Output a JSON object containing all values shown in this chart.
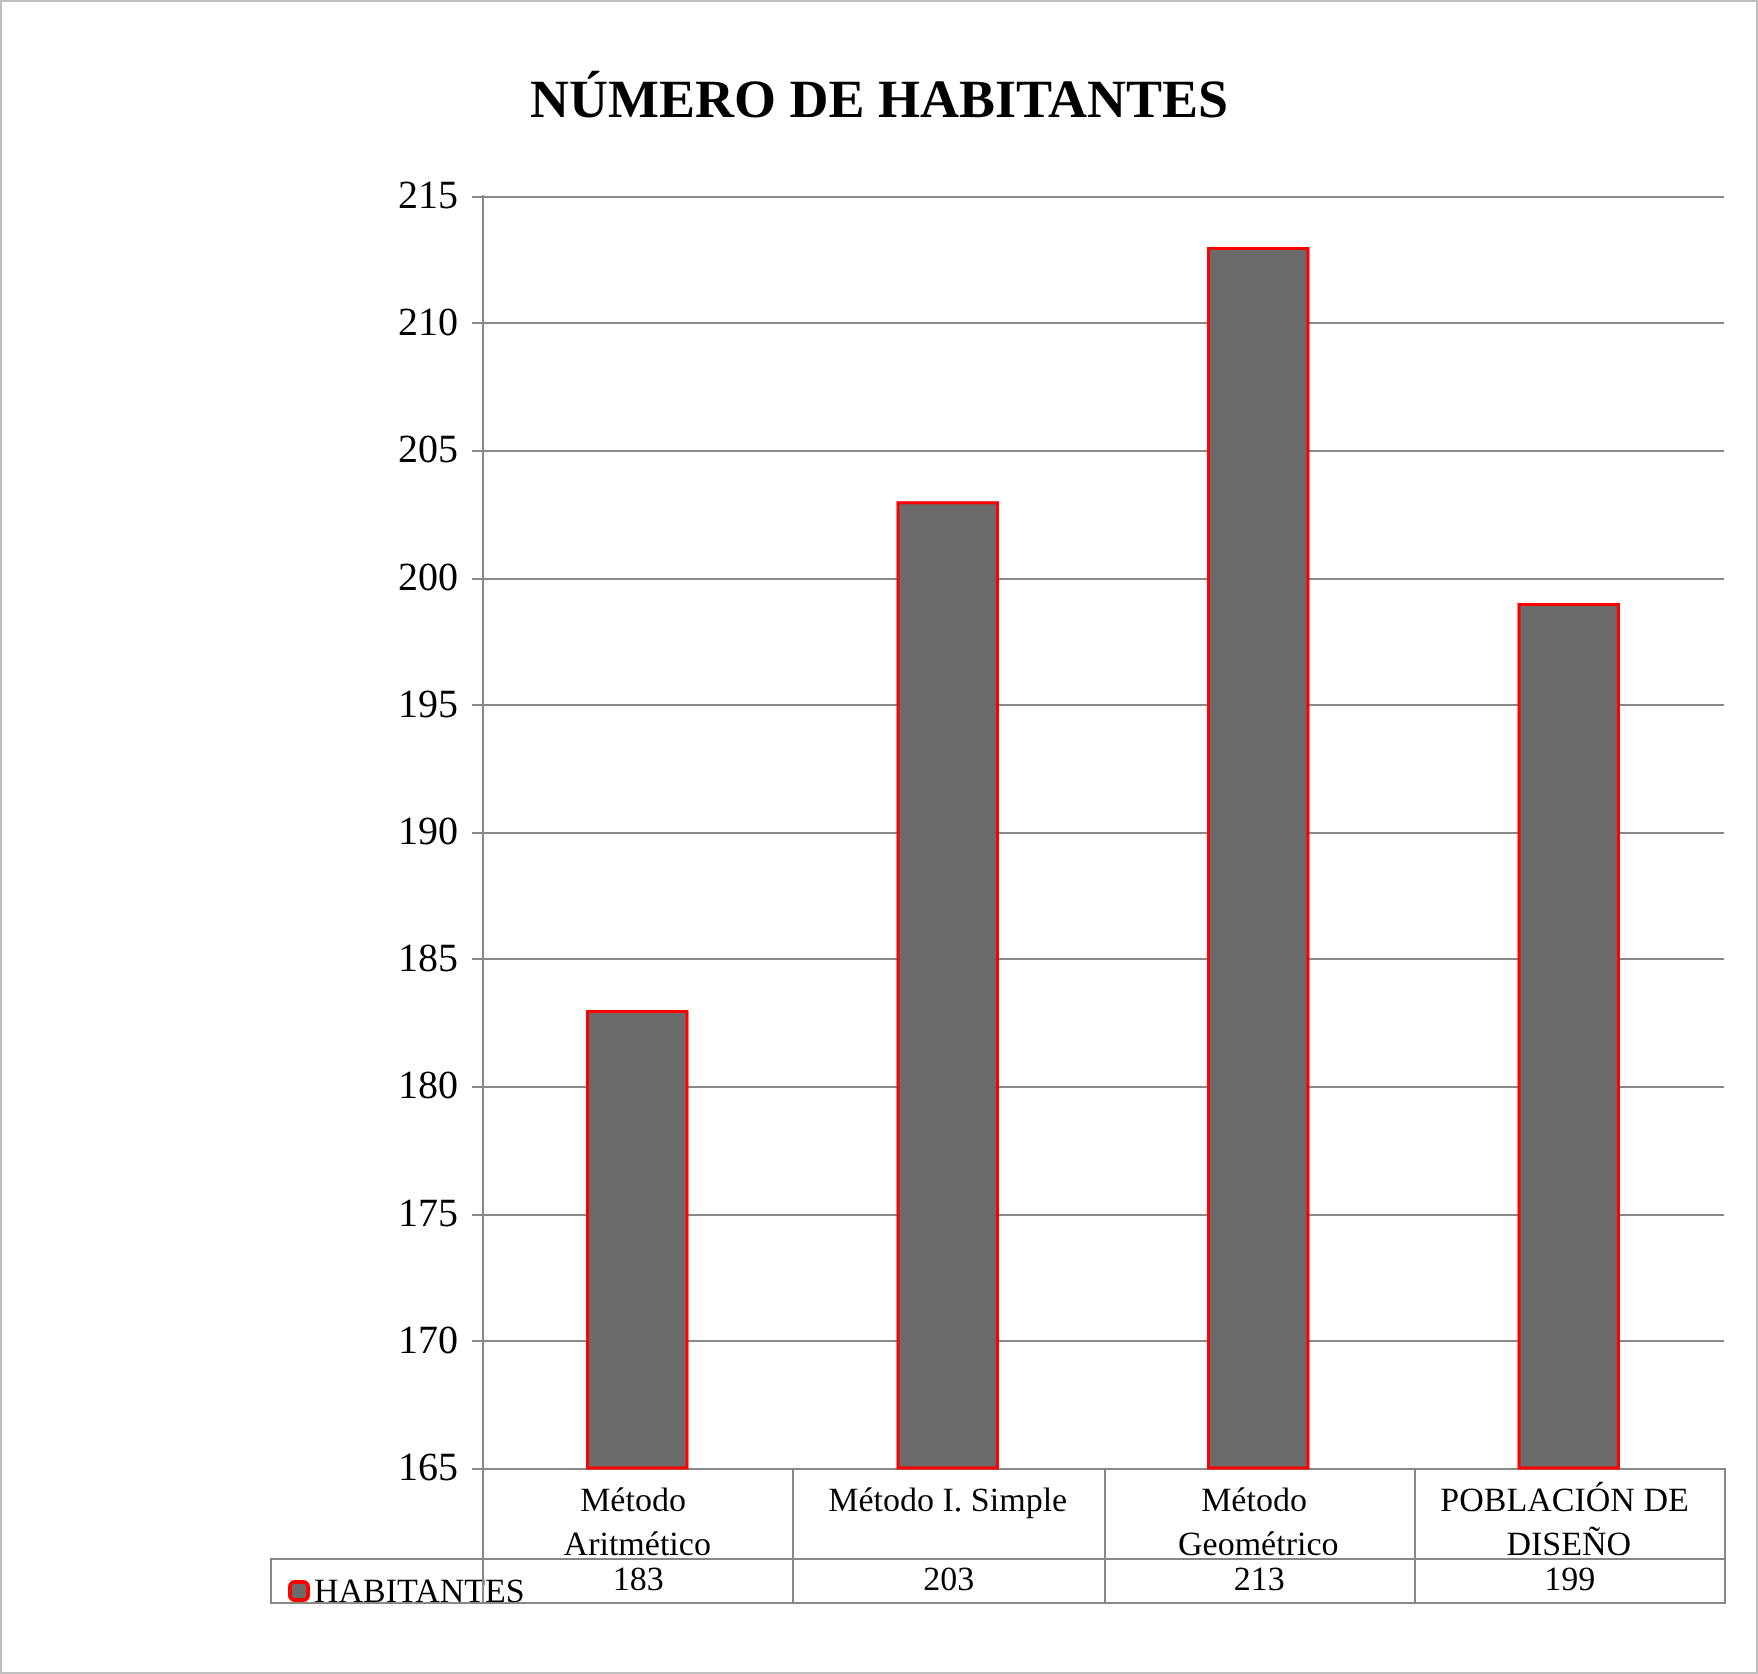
{
  "chart_data": {
    "type": "bar",
    "title": "NÚMERO DE HABITANTES",
    "categories": [
      "Método Aritmético",
      "Método I. Simple",
      "Método Geométrico",
      "POBLACIÓN DE DISEÑO"
    ],
    "series": [
      {
        "name": "HABITANTES",
        "color": "#6b6b6b",
        "values": [
          183,
          203,
          213,
          199
        ]
      }
    ],
    "ylim": [
      165,
      215
    ],
    "yticks": [
      165,
      170,
      175,
      180,
      185,
      190,
      195,
      200,
      205,
      210,
      215
    ],
    "grid": "y",
    "legend": "bottom left",
    "data_labels": true
  }
}
